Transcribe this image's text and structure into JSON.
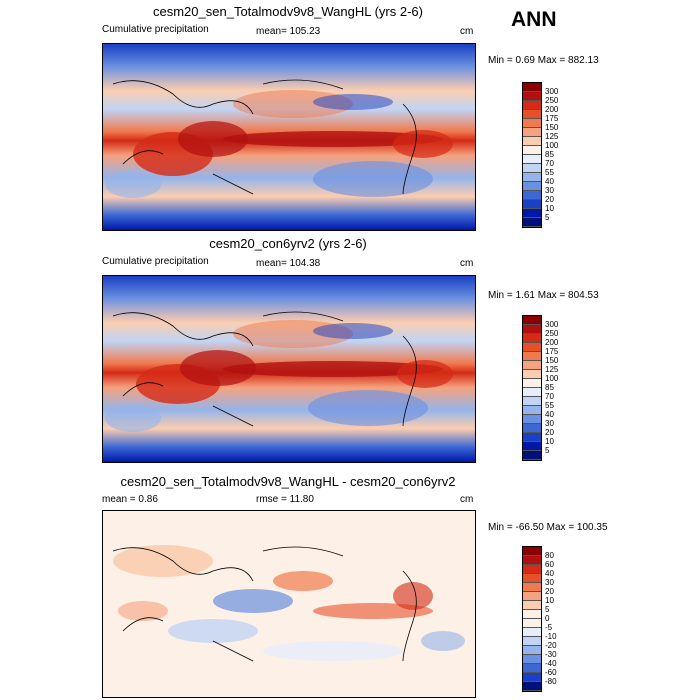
{
  "header": {
    "season": "ANN"
  },
  "panels": [
    {
      "title": "cesm20_sen_Totalmodv9v8_WangHL (yrs 2-6)",
      "left_label": "Cumulative precipitation",
      "center_label": "mean= 105.23",
      "units": "cm",
      "minmax": "Min =   0.69 Max = 882.13",
      "colorbar_labels": [
        "300",
        "250",
        "200",
        "175",
        "150",
        "125",
        "100",
        "85",
        "70",
        "55",
        "40",
        "30",
        "20",
        "10",
        "5"
      ],
      "kind": "abs"
    },
    {
      "title": "cesm20_con6yrv2 (yrs 2-6)",
      "left_label": "Cumulative precipitation",
      "center_label": "mean= 104.38",
      "units": "cm",
      "minmax": "Min =   1.61 Max = 804.53",
      "colorbar_labels": [
        "300",
        "250",
        "200",
        "175",
        "150",
        "125",
        "100",
        "85",
        "70",
        "55",
        "40",
        "30",
        "20",
        "10",
        "5"
      ],
      "kind": "abs"
    },
    {
      "title": "cesm20_sen_Totalmodv9v8_WangHL - cesm20_con6yrv2",
      "left_label": "mean =   0.86",
      "center_label": "rmse =  11.80",
      "units": "cm",
      "minmax": "Min = -66.50 Max = 100.35",
      "colorbar_labels": [
        "80",
        "60",
        "40",
        "30",
        "20",
        "10",
        "5",
        "0",
        "-5",
        "-10",
        "-20",
        "-30",
        "-40",
        "-60",
        "-80"
      ],
      "kind": "diff"
    }
  ],
  "colors": {
    "abs_scale": [
      "#8b0000",
      "#b01010",
      "#d42a16",
      "#e8502a",
      "#f07a4e",
      "#f6a27e",
      "#fbcdb0",
      "#fdf0e6",
      "#e6eefb",
      "#c1d4f4",
      "#95b4eb",
      "#6a90e0",
      "#3c68d6",
      "#1a40c4",
      "#0018a8",
      "#00107a"
    ],
    "diff_scale": [
      "#8b0000",
      "#b01010",
      "#d42a16",
      "#e8502a",
      "#f07a4e",
      "#f6a27e",
      "#fbcdb0",
      "#fdf0e6",
      "#fdf0e6",
      "#e6eefb",
      "#c1d4f4",
      "#95b4eb",
      "#6a90e0",
      "#3c68d6",
      "#1a40c4",
      "#00107a"
    ]
  }
}
